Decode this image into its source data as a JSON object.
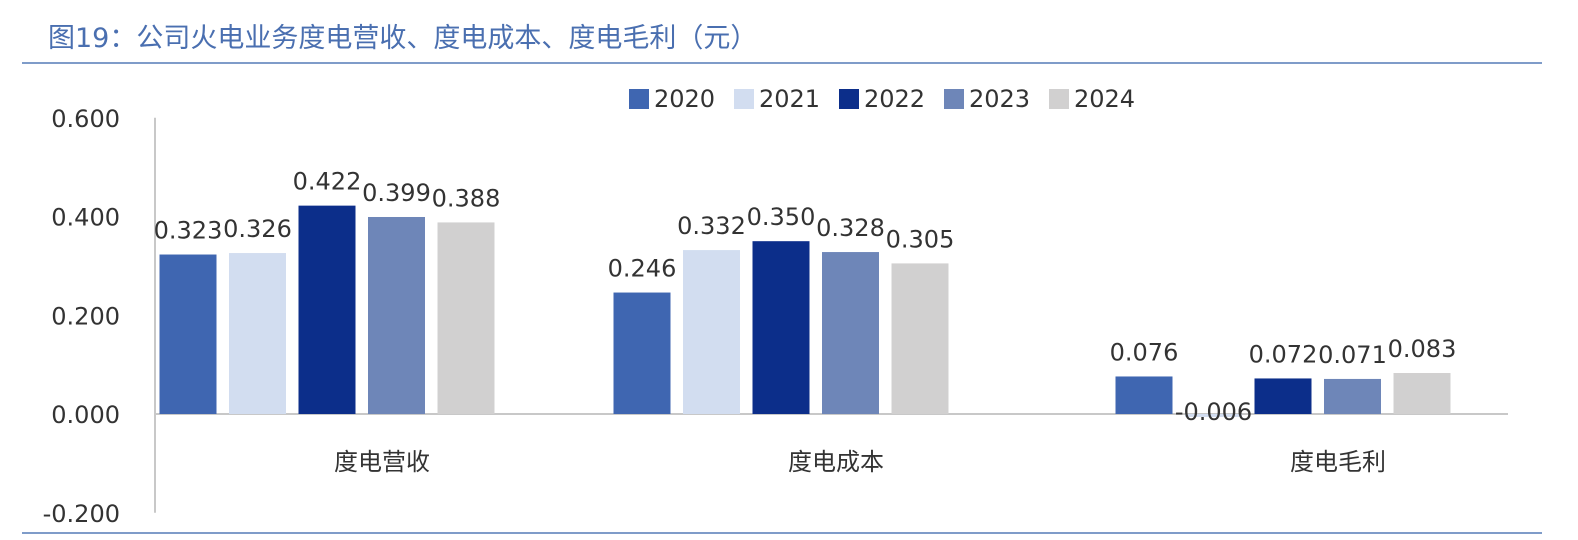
{
  "title": "图19：公司火电业务度电营收、度电成本、度电毛利（元）",
  "chart_data": {
    "type": "bar",
    "categories": [
      "度电营收",
      "度电成本",
      "度电毛利"
    ],
    "series": [
      {
        "name": "2020",
        "values": [
          0.323,
          0.246,
          0.076
        ],
        "labels": [
          "0.323",
          "0.246",
          "0.076"
        ],
        "color": "#3f66b1"
      },
      {
        "name": "2021",
        "values": [
          0.326,
          0.332,
          -0.006
        ],
        "labels": [
          "0.326",
          "0.332",
          "-0.006"
        ],
        "color": "#d2ddf0"
      },
      {
        "name": "2022",
        "values": [
          0.422,
          0.35,
          0.072
        ],
        "labels": [
          "0.422",
          "0.350",
          "0.072"
        ],
        "color": "#0c2e8a"
      },
      {
        "name": "2023",
        "values": [
          0.399,
          0.328,
          0.071
        ],
        "labels": [
          "0.399",
          "0.328",
          "0.071"
        ],
        "color": "#6e86b8"
      },
      {
        "name": "2024",
        "values": [
          0.388,
          0.305,
          0.083
        ],
        "labels": [
          "0.388",
          "0.305",
          "0.083"
        ],
        "color": "#d1d0d0"
      }
    ],
    "yticks": [
      "0.600",
      "0.400",
      "0.200",
      "0.000",
      "-0.200"
    ],
    "ylim": [
      -0.2,
      0.6
    ],
    "legend_position": "top-center",
    "grid": false
  }
}
